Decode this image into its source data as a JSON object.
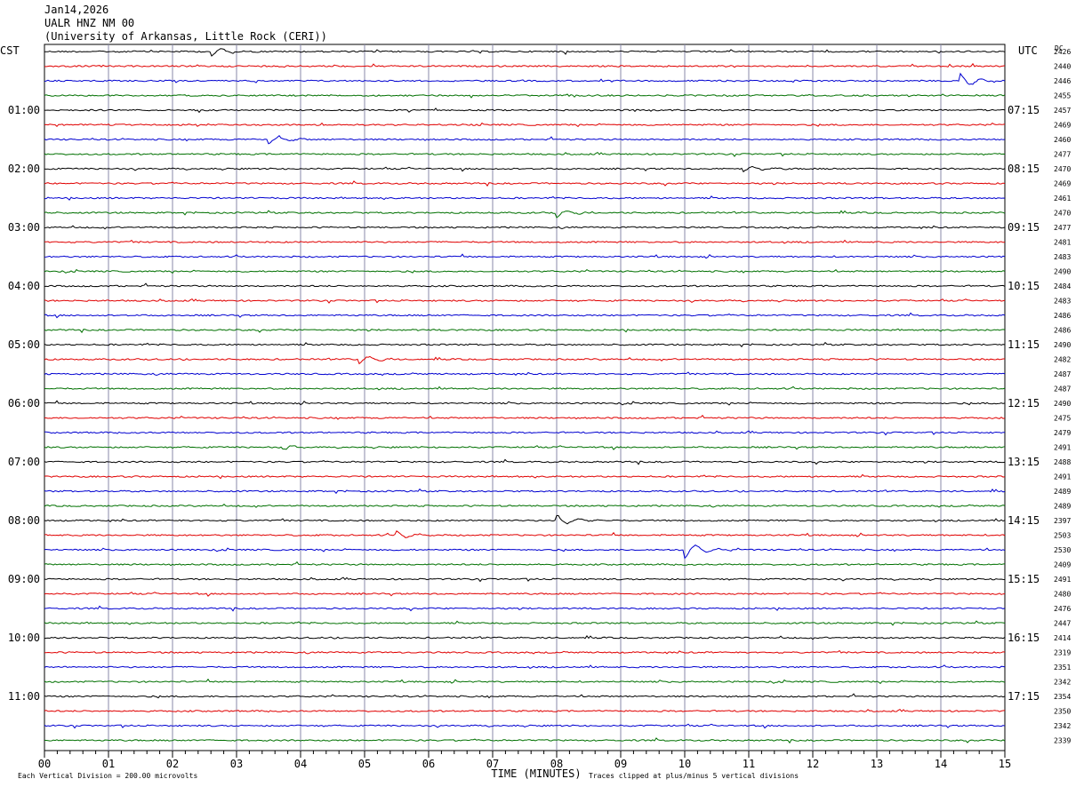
{
  "header": {
    "date": "Jan14,2026",
    "station": "UALR HNZ NM 00",
    "institution": "(University of Arkansas, Little Rock (CERI))"
  },
  "labels": {
    "left_tz": "CST",
    "right_tz": "UTC",
    "dc": "DC",
    "xlabel": "TIME (MINUTES)",
    "scale_note": "Each Vertical Division =  200.00 microvolts",
    "clip_note": "Traces clipped at plus/minus 5 vertical divisions"
  },
  "colors": {
    "trace_cycle": [
      "#000000",
      "#e00000",
      "#0000d0",
      "#007000"
    ],
    "grid": "#8888aa",
    "axis": "#000000"
  },
  "chart_data": {
    "type": "line",
    "title": "Jan14,2026 UALR HNZ NM 00",
    "xlabel": "TIME (MINUTES)",
    "xlim": [
      0,
      15
    ],
    "x_ticks": [
      "00",
      "01",
      "02",
      "03",
      "04",
      "05",
      "06",
      "07",
      "08",
      "09",
      "10",
      "11",
      "12",
      "13",
      "14",
      "15"
    ],
    "rows_per_hour": 4,
    "left_time_labels": [
      "01:00",
      "02:00",
      "03:00",
      "04:00",
      "05:00",
      "06:00",
      "07:00",
      "08:00",
      "09:00",
      "10:00",
      "11:00"
    ],
    "right_time_labels": [
      "07:15",
      "08:15",
      "09:15",
      "10:15",
      "11:15",
      "12:15",
      "13:15",
      "14:15",
      "15:15",
      "16:15",
      "17:15"
    ],
    "dc_values": [
      "2426",
      "2440",
      "2446",
      "2455",
      "2457",
      "2469",
      "2460",
      "2477",
      "2470",
      "2469",
      "2461",
      "2470",
      "2477",
      "2481",
      "2483",
      "2490",
      "2484",
      "2483",
      "2486",
      "2486",
      "2490",
      "2482",
      "2487",
      "2487",
      "2490",
      "2475",
      "2479",
      "2491",
      "2488",
      "2491",
      "2489",
      "2489",
      "2397",
      "2503",
      "2530",
      "2409",
      "2491",
      "2480",
      "2476",
      "2447",
      "2414",
      "2319",
      "2351",
      "2342",
      "2354",
      "2350",
      "2342",
      "2339"
    ],
    "trace_end_minute": [
      15,
      15,
      15,
      15,
      15,
      15,
      15,
      15,
      15,
      15,
      15,
      15,
      15,
      15,
      15,
      15,
      15,
      15,
      15,
      15,
      15,
      15,
      15,
      15,
      15,
      15,
      15,
      15,
      15,
      15,
      15,
      15,
      15,
      15,
      15,
      15,
      15,
      15,
      15,
      15,
      15,
      15,
      15,
      15,
      15,
      15,
      15,
      15
    ],
    "events": [
      {
        "row": 0,
        "minute": 2.6,
        "amp": 6
      },
      {
        "row": 2,
        "minute": 14.3,
        "amp": -8
      },
      {
        "row": 6,
        "minute": 3.5,
        "amp": 5
      },
      {
        "row": 8,
        "minute": 10.9,
        "amp": 4
      },
      {
        "row": 11,
        "minute": 8.0,
        "amp": 5
      },
      {
        "row": 21,
        "minute": 4.9,
        "amp": 5
      },
      {
        "row": 27,
        "minute": 3.7,
        "amp": 3
      },
      {
        "row": 32,
        "minute": 8.0,
        "amp": -6
      },
      {
        "row": 33,
        "minute": 5.5,
        "amp": -5
      },
      {
        "row": 34,
        "minute": 10.0,
        "amp": 10
      }
    ]
  }
}
